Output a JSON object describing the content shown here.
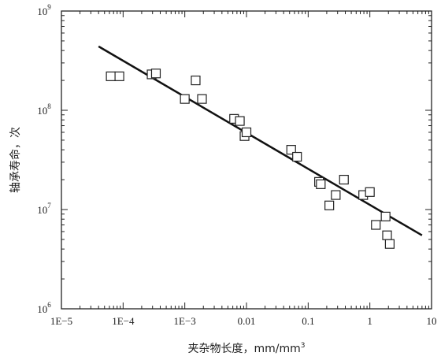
{
  "chart_data": {
    "type": "scatter",
    "xlabel": "夹杂物长度，mm/mm",
    "xlabel_superscript": "3",
    "ylabel": "轴承寿命，次",
    "x_scale": "log",
    "y_scale": "log",
    "xlim": [
      1e-05,
      10
    ],
    "ylim": [
      1000000,
      1000000000
    ],
    "x_ticks": [
      {
        "value": 1e-05,
        "label": "1E−5"
      },
      {
        "value": 0.0001,
        "label": "1E−4"
      },
      {
        "value": 0.001,
        "label": "1E−3"
      },
      {
        "value": 0.01,
        "label": "0.01"
      },
      {
        "value": 0.1,
        "label": "0.1"
      },
      {
        "value": 1,
        "label": "1"
      },
      {
        "value": 10,
        "label": "10"
      }
    ],
    "y_ticks": [
      {
        "value": 1000000,
        "base": "10",
        "exp": "6"
      },
      {
        "value": 10000000,
        "base": "10",
        "exp": "7"
      },
      {
        "value": 100000000,
        "base": "10",
        "exp": "8"
      },
      {
        "value": 1000000000,
        "base": "10",
        "exp": "9"
      }
    ],
    "grid": false,
    "marker": "open-square",
    "color": "#222222",
    "series": [
      {
        "points": [
          {
            "x": 6.3e-05,
            "y": 220000000
          },
          {
            "x": 8.7e-05,
            "y": 220000000
          },
          {
            "x": 0.00029,
            "y": 230000000
          },
          {
            "x": 0.00034,
            "y": 235000000
          },
          {
            "x": 0.001,
            "y": 130000000
          },
          {
            "x": 0.0015,
            "y": 200000000
          },
          {
            "x": 0.0019,
            "y": 130000000
          },
          {
            "x": 0.0063,
            "y": 82000000
          },
          {
            "x": 0.0078,
            "y": 78000000
          },
          {
            "x": 0.0093,
            "y": 55000000
          },
          {
            "x": 0.01,
            "y": 60000000
          },
          {
            "x": 0.053,
            "y": 40000000
          },
          {
            "x": 0.066,
            "y": 34000000
          },
          {
            "x": 0.15,
            "y": 19000000
          },
          {
            "x": 0.16,
            "y": 18000000
          },
          {
            "x": 0.22,
            "y": 11000000
          },
          {
            "x": 0.28,
            "y": 14000000
          },
          {
            "x": 0.38,
            "y": 20000000
          },
          {
            "x": 0.78,
            "y": 14000000
          },
          {
            "x": 1.0,
            "y": 15000000
          },
          {
            "x": 1.25,
            "y": 7000000
          },
          {
            "x": 1.8,
            "y": 8500000
          },
          {
            "x": 1.9,
            "y": 5500000
          },
          {
            "x": 2.1,
            "y": 4500000
          }
        ]
      }
    ],
    "fit_line": {
      "x": [
        4e-05,
        7
      ],
      "y": [
        440000000,
        5500000
      ]
    }
  }
}
